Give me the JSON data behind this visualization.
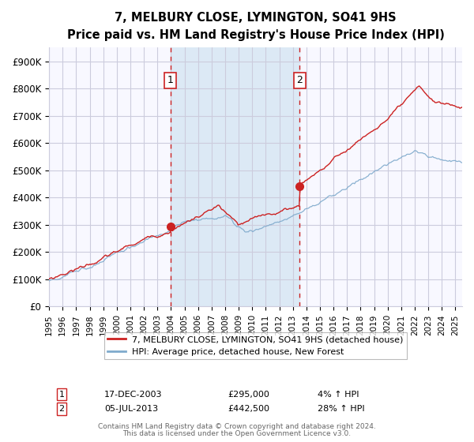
{
  "title": "7, MELBURY CLOSE, LYMINGTON, SO41 9HS",
  "subtitle": "Price paid vs. HM Land Registry's House Price Index (HPI)",
  "legend_line1": "7, MELBURY CLOSE, LYMINGTON, SO41 9HS (detached house)",
  "legend_line2": "HPI: Average price, detached house, New Forest",
  "marker1_date_num": 2003.96,
  "marker1_value": 295000,
  "marker2_date_num": 2013.5,
  "marker2_value": 442500,
  "marker1_label": "1",
  "marker2_label": "2",
  "annotation1": "17-DEC-2003",
  "annotation1_price": "£295,000",
  "annotation1_hpi": "4% ↑ HPI",
  "annotation2": "05-JUL-2013",
  "annotation2_price": "£442,500",
  "annotation2_hpi": "28% ↑ HPI",
  "shaded_start": 2003.96,
  "shaded_end": 2013.5,
  "shade_color": "#dce9f5",
  "red_color": "#cc2222",
  "blue_color": "#7faacc",
  "xmin": 1995.0,
  "xmax": 2025.5,
  "ymin": 0,
  "ymax": 950000,
  "yticks": [
    0,
    100000,
    200000,
    300000,
    400000,
    500000,
    600000,
    700000,
    800000,
    900000
  ],
  "ytick_labels": [
    "£0",
    "£100K",
    "£200K",
    "£300K",
    "£400K",
    "£500K",
    "£600K",
    "£700K",
    "£800K",
    "£900K"
  ],
  "xtick_years": [
    1995,
    1996,
    1997,
    1998,
    1999,
    2000,
    2001,
    2002,
    2003,
    2004,
    2005,
    2006,
    2007,
    2008,
    2009,
    2010,
    2011,
    2012,
    2013,
    2014,
    2015,
    2016,
    2017,
    2018,
    2019,
    2020,
    2021,
    2022,
    2023,
    2024,
    2025
  ],
  "footer1": "Contains HM Land Registry data © Crown copyright and database right 2024.",
  "footer2": "This data is licensed under the Open Government Licence v3.0.",
  "background_color": "#f8f8ff",
  "grid_color": "#ccccdd"
}
